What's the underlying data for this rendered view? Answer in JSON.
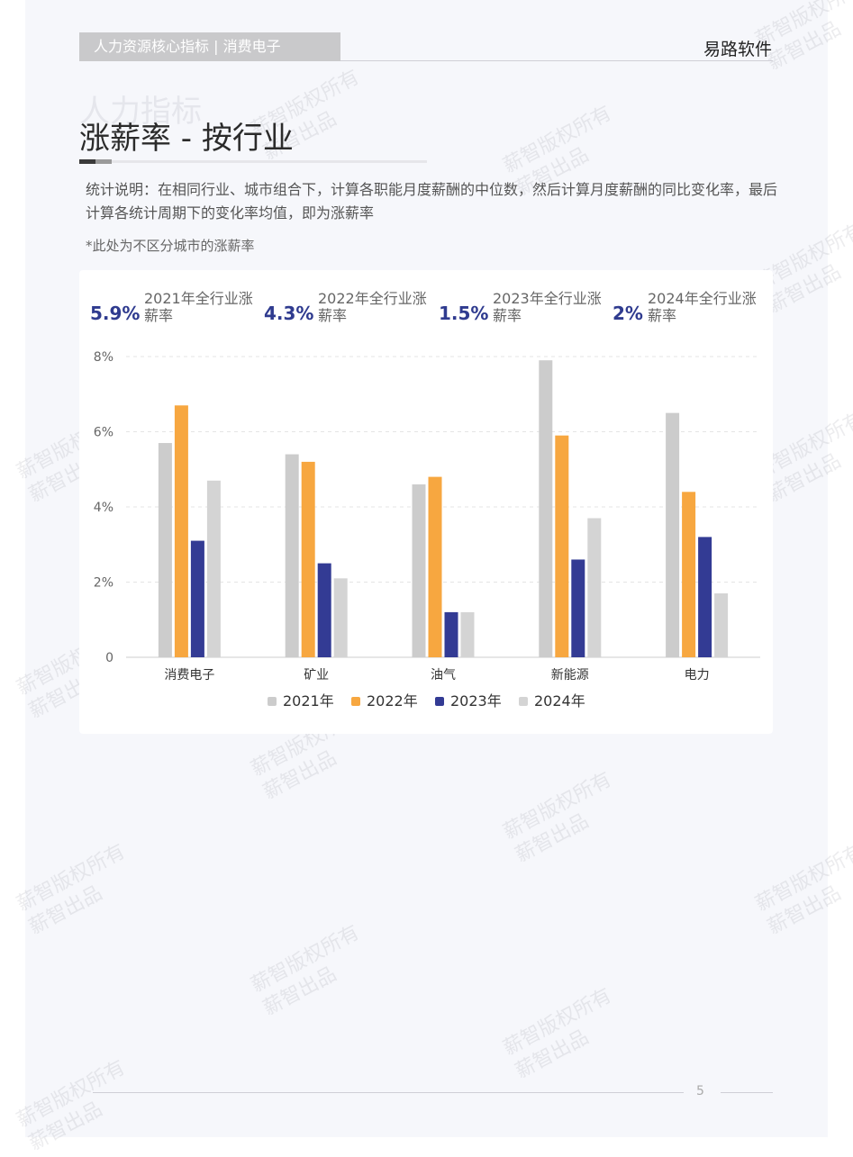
{
  "header": {
    "tag": "人力资源核心指标  |  消费电子",
    "brand": "易路软件"
  },
  "watermark": {
    "line1": "薪智版权所有",
    "line2": "薪智出品"
  },
  "page": {
    "ghost_title": "人力指标",
    "title": "涨薪率 - 按行业",
    "description": "统计说明：在相同行业、城市组合下，计算各职能月度薪酬的中位数，然后计算月度薪酬的同比变化率，最后计算各统计周期下的变化率均值，即为涨薪率",
    "note": "*此处为不区分城市的涨薪率",
    "page_number": "5"
  },
  "kpis": [
    {
      "value": "5.9%",
      "label": "2021年全行业涨薪率"
    },
    {
      "value": "4.3%",
      "label": "2022年全行业涨薪率"
    },
    {
      "value": "1.5%",
      "label": "2023年全行业涨薪率"
    },
    {
      "value": "2%",
      "label": "2024年全行业涨薪率"
    }
  ],
  "chart_data": {
    "type": "bar",
    "categories": [
      "消费电子",
      "矿业",
      "油气",
      "新能源",
      "电力"
    ],
    "series": [
      {
        "name": "2021年",
        "color": "#cccccc",
        "values": [
          5.7,
          5.4,
          4.6,
          7.9,
          6.5
        ]
      },
      {
        "name": "2022年",
        "color": "#f7a740",
        "values": [
          6.7,
          5.2,
          4.8,
          5.9,
          4.4
        ]
      },
      {
        "name": "2023年",
        "color": "#333b94",
        "values": [
          3.1,
          2.5,
          1.2,
          2.6,
          3.2
        ]
      },
      {
        "name": "2024年",
        "color": "#d4d4d4",
        "values": [
          4.7,
          2.1,
          1.2,
          3.7,
          1.7
        ]
      }
    ],
    "yticks": [
      0,
      2,
      4,
      6,
      8
    ],
    "ytick_labels": [
      "0",
      "2%",
      "4%",
      "6%",
      "8%"
    ],
    "ylim": [
      0,
      8
    ],
    "unit": "%",
    "legend_position": "bottom",
    "grid": true
  }
}
